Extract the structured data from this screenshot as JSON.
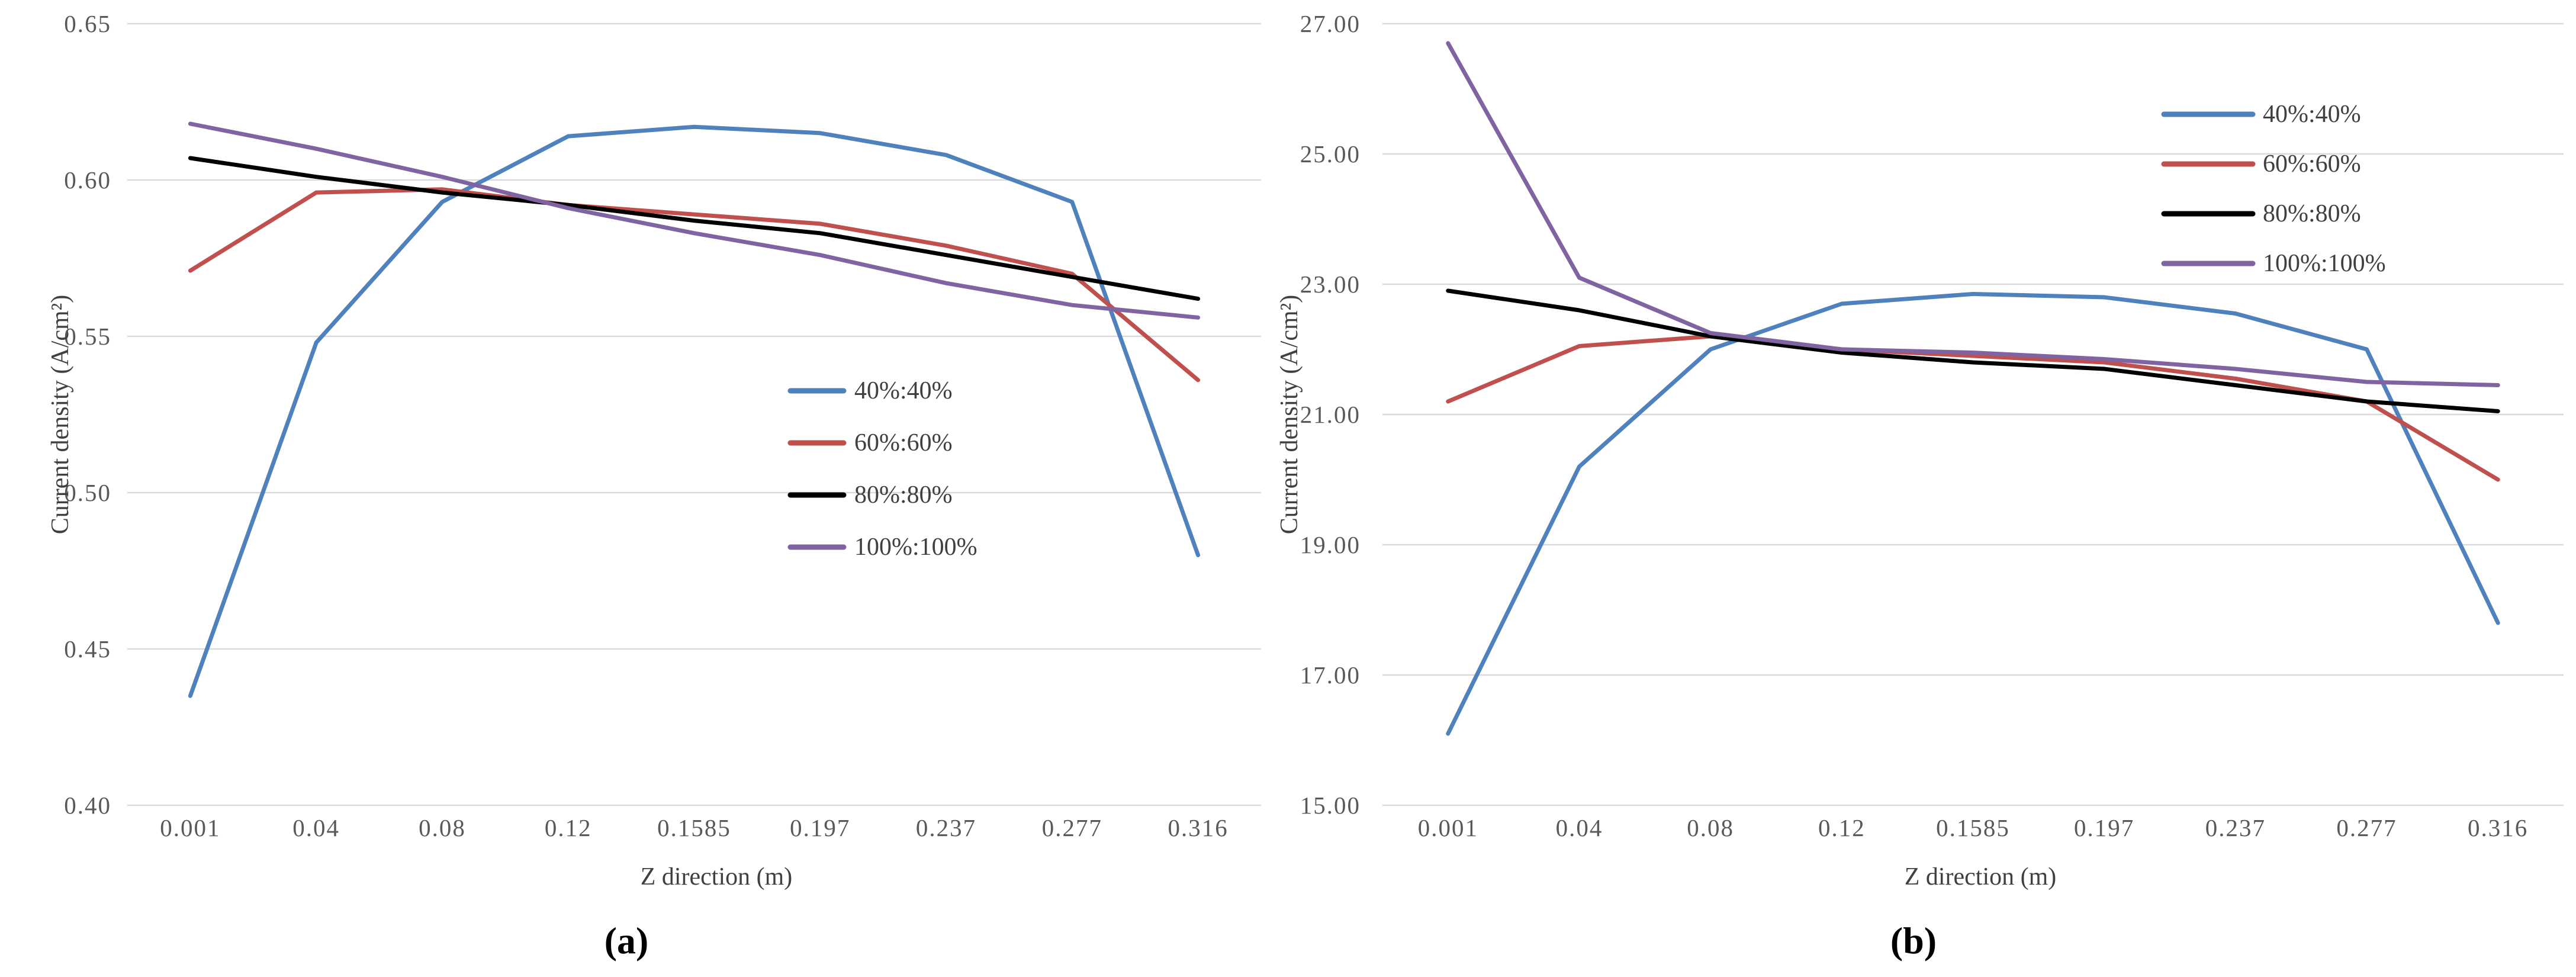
{
  "page": {
    "background": "#ffffff",
    "gridline_color": "#D9D9D9"
  },
  "chart_data": [
    {
      "id": "a",
      "type": "line",
      "caption": "(a)",
      "xlabel": "Z direction (m)",
      "ylabel": "Current density (A/cm²)",
      "categories": [
        "0.001",
        "0.04",
        "0.08",
        "0.12",
        "0.1585",
        "0.197",
        "0.237",
        "0.277",
        "0.316"
      ],
      "yticks": [
        "0.65",
        "0.60",
        "0.55",
        "0.50",
        "0.45",
        "0.40"
      ],
      "ylim": [
        0.4,
        0.65
      ],
      "grid": true,
      "legend_position": "inside-right",
      "series": [
        {
          "name": "40%:40%",
          "color": "#4F81BD",
          "values": [
            0.435,
            0.548,
            0.593,
            0.614,
            0.617,
            0.615,
            0.608,
            0.593,
            0.48
          ]
        },
        {
          "name": "60%:60%",
          "color": "#C0504D",
          "values": [
            0.571,
            0.596,
            0.597,
            0.592,
            0.589,
            0.586,
            0.579,
            0.57,
            0.536
          ]
        },
        {
          "name": "80%:80%",
          "color": "#000000",
          "values": [
            0.607,
            0.601,
            0.596,
            0.592,
            0.587,
            0.583,
            0.576,
            0.569,
            0.562
          ]
        },
        {
          "name": "100%:100%",
          "color": "#8064A2",
          "values": [
            0.618,
            0.61,
            0.601,
            0.591,
            0.583,
            0.576,
            0.567,
            0.56,
            0.556
          ]
        }
      ]
    },
    {
      "id": "b",
      "type": "line",
      "caption": "(b)",
      "xlabel": "Z direction (m)",
      "ylabel": "Current density (A/cm²)",
      "categories": [
        "0.001",
        "0.04",
        "0.08",
        "0.12",
        "0.1585",
        "0.197",
        "0.237",
        "0.277",
        "0.316"
      ],
      "yticks": [
        "27.00",
        "25.00",
        "23.00",
        "21.00",
        "19.00",
        "17.00",
        "15.00"
      ],
      "ylim": [
        15.0,
        27.0
      ],
      "grid": true,
      "legend_position": "inside-top-right",
      "series": [
        {
          "name": "40%:40%",
          "color": "#4F81BD",
          "values": [
            16.1,
            20.2,
            22.0,
            22.7,
            22.85,
            22.8,
            22.55,
            22.0,
            17.8
          ]
        },
        {
          "name": "60%:60%",
          "color": "#C0504D",
          "values": [
            21.2,
            22.05,
            22.2,
            22.0,
            21.9,
            21.8,
            21.55,
            21.2,
            20.0
          ]
        },
        {
          "name": "80%:80%",
          "color": "#000000",
          "values": [
            22.9,
            22.6,
            22.2,
            21.95,
            21.8,
            21.7,
            21.45,
            21.2,
            21.05
          ]
        },
        {
          "name": "100%:100%",
          "color": "#8064A2",
          "values": [
            26.7,
            23.1,
            22.25,
            22.0,
            21.95,
            21.85,
            21.7,
            21.5,
            21.45
          ]
        }
      ]
    }
  ]
}
